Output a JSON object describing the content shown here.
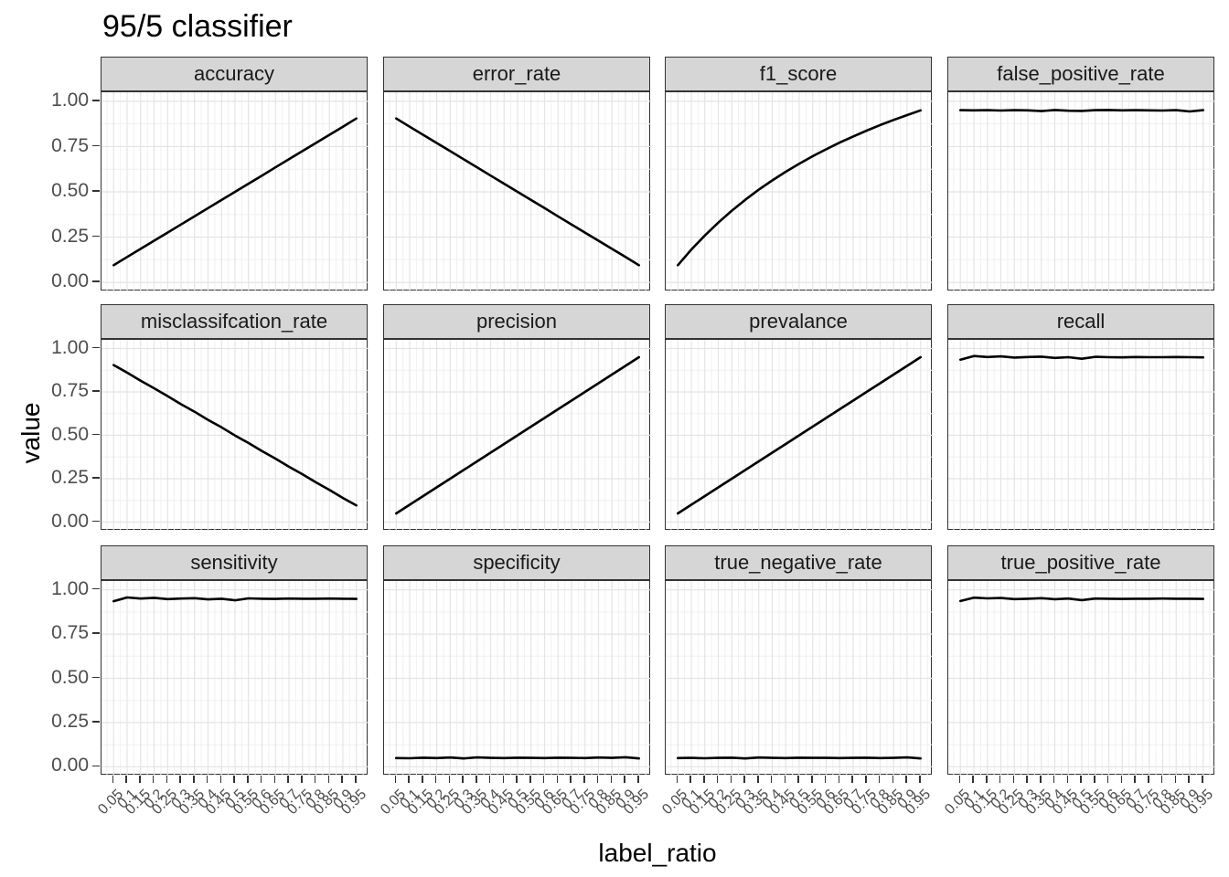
{
  "chart_data": {
    "type": "line",
    "title": "95/5 classifier",
    "xlabel": "label_ratio",
    "ylabel": "value",
    "grid": true,
    "legend": "none",
    "line_color": "#000000",
    "strip_fill": "#d6d6d6",
    "panel_border_color": "#333333",
    "axis_text_color": "#4d4d4d",
    "ylim": [
      0,
      1
    ],
    "x_axis": {
      "values": [
        0.05,
        0.1,
        0.15,
        0.2,
        0.25,
        0.3,
        0.35,
        0.4,
        0.45,
        0.5,
        0.55,
        0.6,
        0.65,
        0.7,
        0.75,
        0.8,
        0.85,
        0.9,
        0.95
      ],
      "labels": [
        "0.05",
        "0.1",
        "0.15",
        "0.2",
        "0.25",
        "0.3",
        "0.35",
        "0.4",
        "0.45",
        "0.5",
        "0.55",
        "0.6",
        "0.65",
        "0.7",
        "0.75",
        "0.8",
        "0.85",
        "0.9",
        "0.95"
      ]
    },
    "y_axis": {
      "values": [
        0,
        0.25,
        0.5,
        0.75,
        1
      ],
      "labels": [
        "0.00",
        "0.25",
        "0.50",
        "0.75",
        "1.00"
      ]
    },
    "facets": [
      {
        "label": "accuracy",
        "values": [
          0.095,
          0.14,
          0.185,
          0.23,
          0.275,
          0.32,
          0.365,
          0.41,
          0.455,
          0.5,
          0.545,
          0.59,
          0.635,
          0.68,
          0.725,
          0.77,
          0.815,
          0.86,
          0.905
        ]
      },
      {
        "label": "error_rate",
        "values": [
          0.905,
          0.86,
          0.815,
          0.77,
          0.725,
          0.68,
          0.635,
          0.59,
          0.545,
          0.5,
          0.455,
          0.41,
          0.365,
          0.32,
          0.275,
          0.23,
          0.185,
          0.14,
          0.095
        ]
      },
      {
        "label": "f1_score",
        "values": [
          0.095,
          0.181,
          0.259,
          0.33,
          0.396,
          0.456,
          0.512,
          0.563,
          0.611,
          0.655,
          0.697,
          0.735,
          0.772,
          0.806,
          0.838,
          0.869,
          0.897,
          0.924,
          0.95
        ]
      },
      {
        "label": "false_positive_rate",
        "values": [
          0.951,
          0.95,
          0.951,
          0.949,
          0.951,
          0.95,
          0.946,
          0.952,
          0.948,
          0.947,
          0.951,
          0.952,
          0.95,
          0.951,
          0.95,
          0.949,
          0.951,
          0.944,
          0.951
        ]
      },
      {
        "label": "misclassifcation_rate",
        "values": [
          0.905,
          0.861,
          0.814,
          0.771,
          0.726,
          0.679,
          0.636,
          0.589,
          0.546,
          0.499,
          0.456,
          0.409,
          0.366,
          0.319,
          0.276,
          0.229,
          0.186,
          0.139,
          0.096
        ]
      },
      {
        "label": "precision",
        "values": [
          0.05,
          0.1,
          0.15,
          0.2,
          0.25,
          0.3,
          0.35,
          0.4,
          0.45,
          0.5,
          0.55,
          0.6,
          0.65,
          0.7,
          0.75,
          0.8,
          0.85,
          0.9,
          0.95
        ]
      },
      {
        "label": "prevalance",
        "values": [
          0.05,
          0.1,
          0.15,
          0.2,
          0.25,
          0.3,
          0.35,
          0.4,
          0.45,
          0.5,
          0.55,
          0.6,
          0.65,
          0.7,
          0.75,
          0.8,
          0.85,
          0.9,
          0.95
        ]
      },
      {
        "label": "recall",
        "values": [
          0.936,
          0.957,
          0.951,
          0.955,
          0.948,
          0.951,
          0.953,
          0.946,
          0.95,
          0.941,
          0.952,
          0.95,
          0.949,
          0.951,
          0.95,
          0.95,
          0.951,
          0.95,
          0.949
        ]
      },
      {
        "label": "sensitivity",
        "values": [
          0.936,
          0.957,
          0.951,
          0.955,
          0.948,
          0.951,
          0.953,
          0.946,
          0.95,
          0.941,
          0.952,
          0.95,
          0.949,
          0.951,
          0.95,
          0.95,
          0.951,
          0.95,
          0.949
        ]
      },
      {
        "label": "specificity",
        "values": [
          0.049,
          0.048,
          0.051,
          0.049,
          0.052,
          0.047,
          0.053,
          0.05,
          0.049,
          0.051,
          0.05,
          0.049,
          0.051,
          0.05,
          0.049,
          0.052,
          0.05,
          0.054,
          0.047
        ]
      },
      {
        "label": "true_negative_rate",
        "values": [
          0.049,
          0.05,
          0.048,
          0.05,
          0.051,
          0.047,
          0.052,
          0.05,
          0.049,
          0.051,
          0.05,
          0.05,
          0.049,
          0.05,
          0.051,
          0.049,
          0.05,
          0.053,
          0.047
        ]
      },
      {
        "label": "true_positive_rate",
        "values": [
          0.937,
          0.956,
          0.952,
          0.954,
          0.948,
          0.95,
          0.953,
          0.947,
          0.951,
          0.942,
          0.951,
          0.95,
          0.949,
          0.95,
          0.95,
          0.951,
          0.95,
          0.95,
          0.949
        ]
      }
    ]
  }
}
